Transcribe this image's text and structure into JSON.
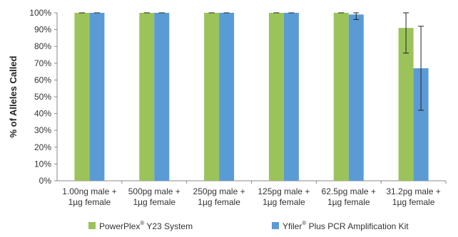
{
  "chart_data": {
    "type": "bar",
    "ylabel": "% of Alleles Called",
    "xlabel": "",
    "title": "",
    "ylim": [
      0,
      100
    ],
    "yticks": [
      "0%",
      "10%",
      "20%",
      "30%",
      "40%",
      "50%",
      "60%",
      "70%",
      "80%",
      "90%",
      "100%"
    ],
    "categories": [
      [
        "1.00ng male +",
        "1µg female"
      ],
      [
        "500pg male +",
        "1µg female"
      ],
      [
        "250pg male +",
        "1µg female"
      ],
      [
        "125pg male +",
        "1µg female"
      ],
      [
        "62.5pg male +",
        "1µg female"
      ],
      [
        "31.2pg male +",
        "1µg female"
      ]
    ],
    "series": [
      {
        "name": "PowerPlex® Y23 System",
        "color": "#9bc35a",
        "values": [
          100,
          100,
          100,
          100,
          100,
          91
        ],
        "errors": [
          0,
          0,
          0,
          0,
          0,
          15
        ]
      },
      {
        "name": "Yfiler® Plus PCR Amplification Kit",
        "color": "#5b9bd5",
        "values": [
          100,
          100,
          100,
          100,
          99,
          67
        ],
        "errors": [
          0,
          0,
          0,
          0,
          3,
          25
        ]
      }
    ],
    "legend": {
      "position": "bottom",
      "items": [
        {
          "base": "PowerPlex",
          "sup": "®",
          "rest": " Y23 System"
        },
        {
          "base": "Yfiler",
          "sup": "®",
          "rest": " Plus PCR Amplification Kit"
        }
      ]
    },
    "grid": false
  }
}
